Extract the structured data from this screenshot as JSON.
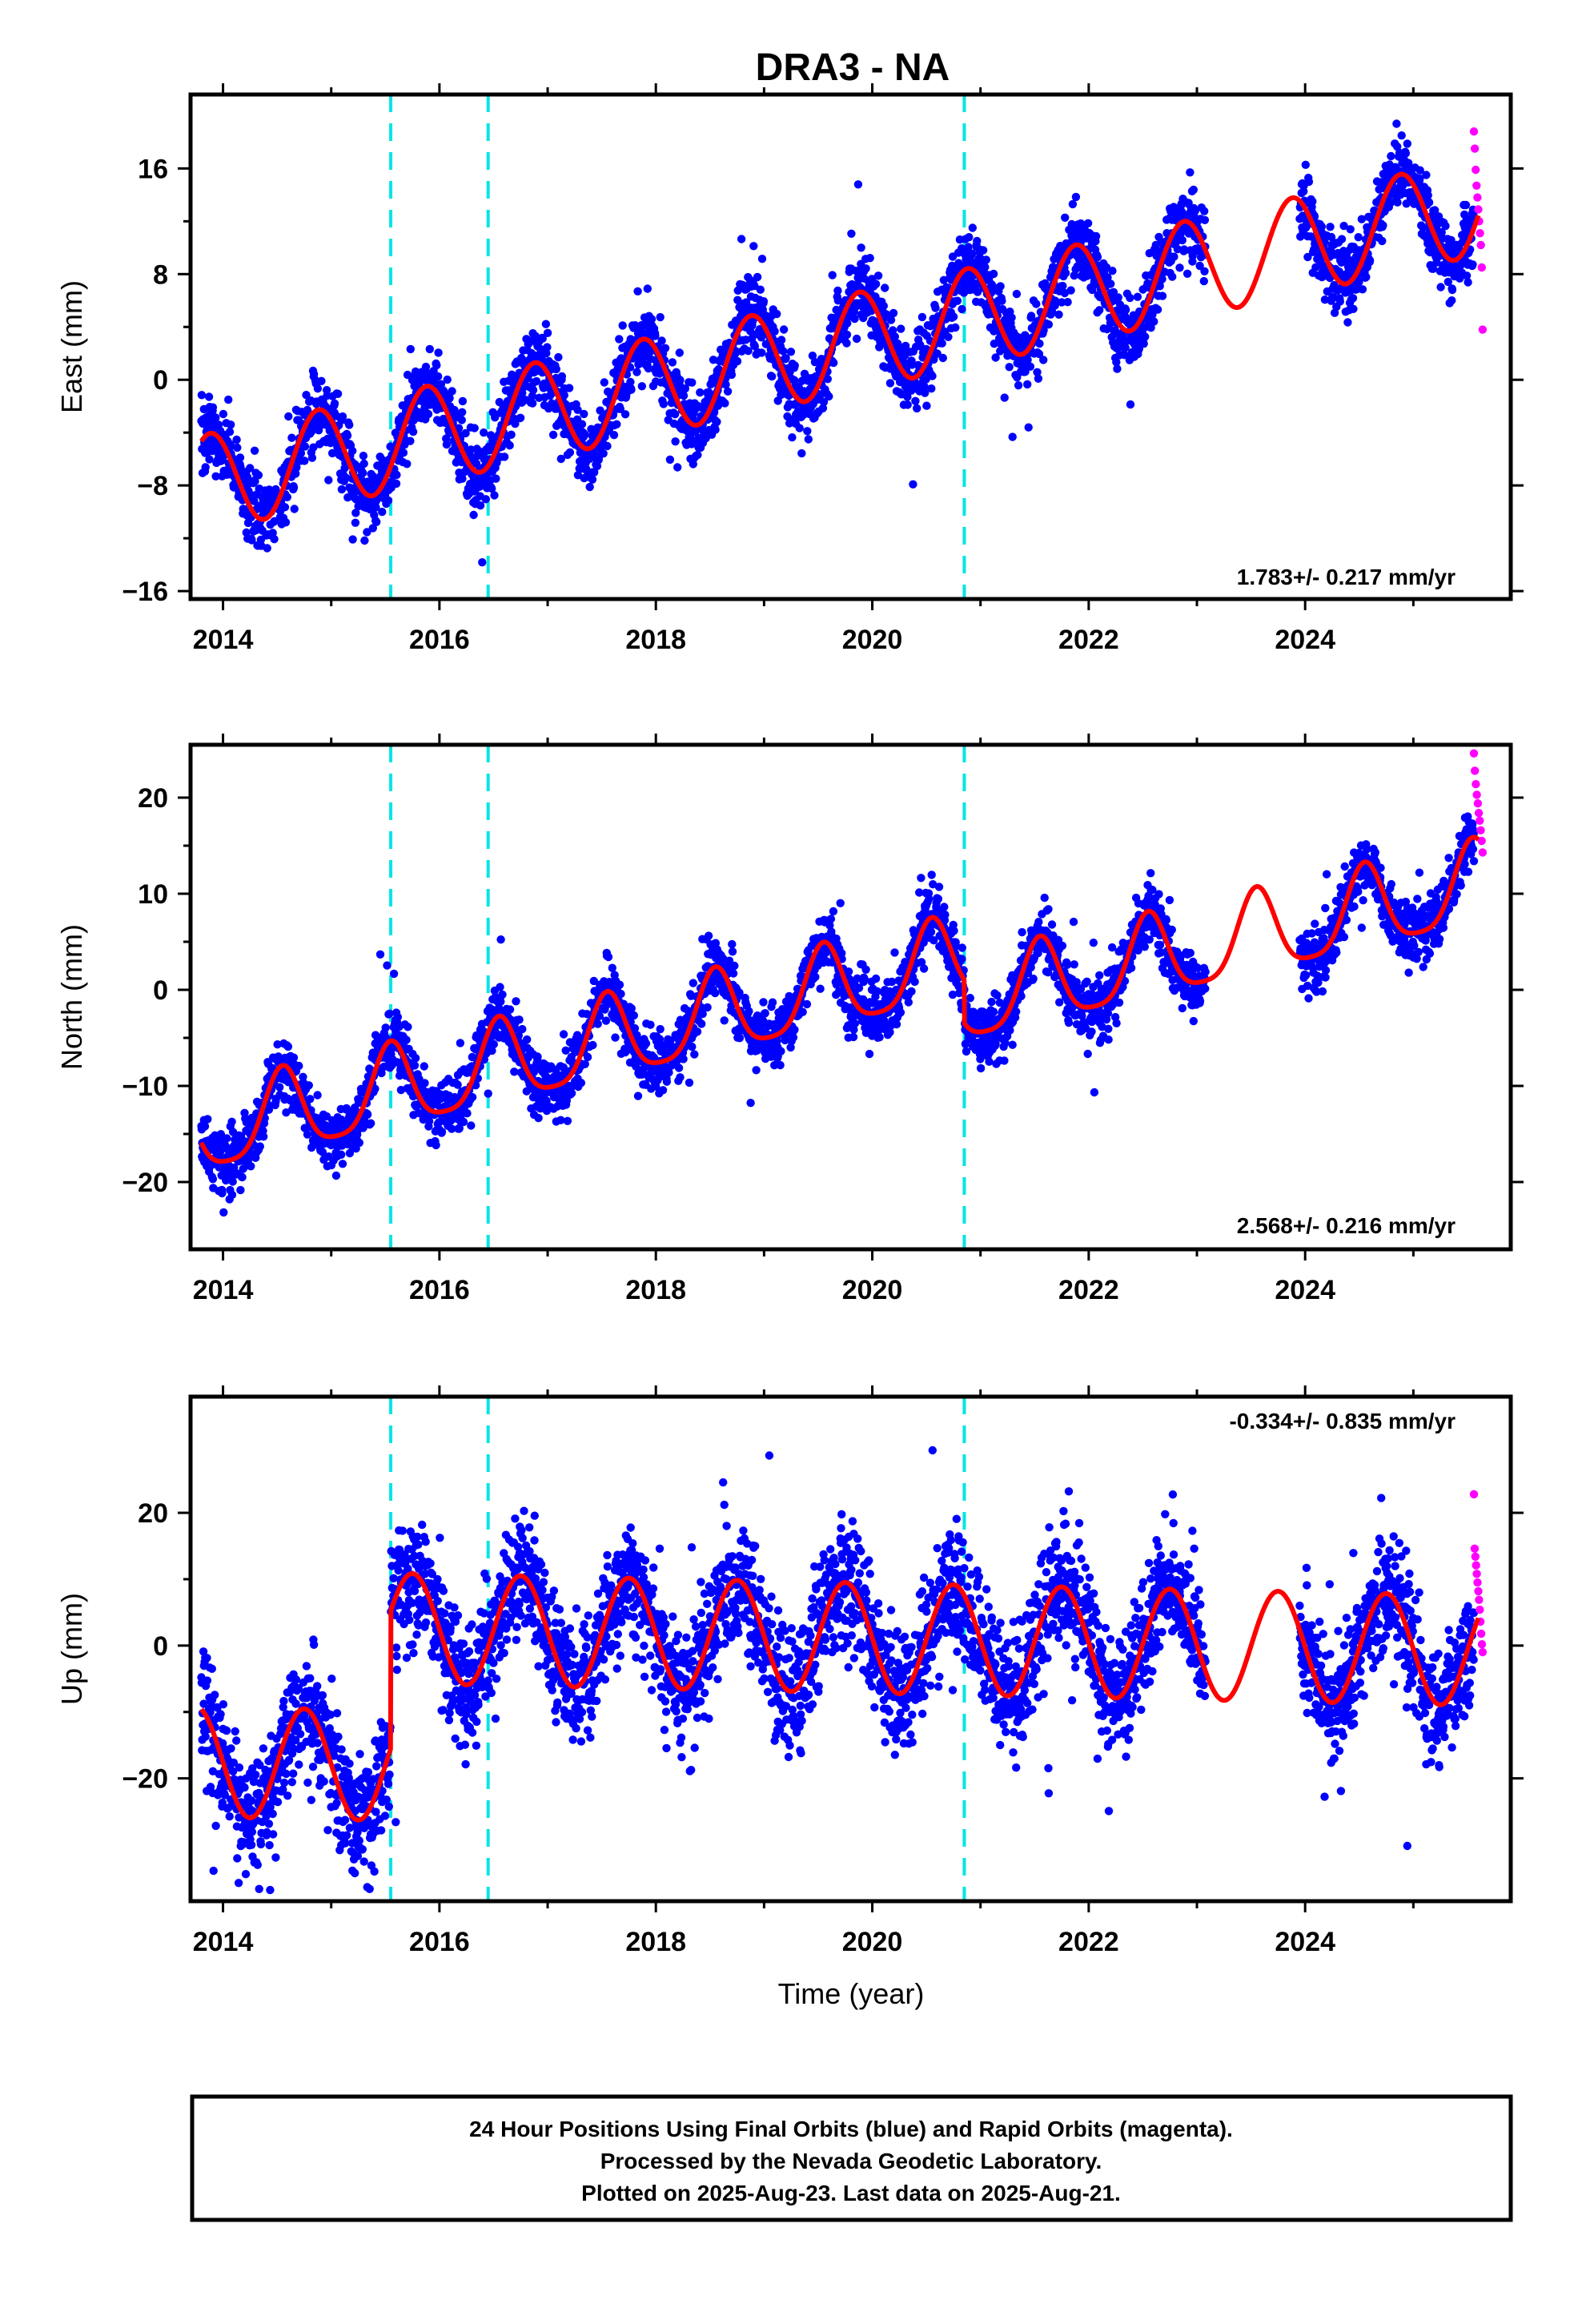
{
  "figure": {
    "title": "DRA3 - NA",
    "xlabel": "Time (year)",
    "colors": {
      "final_orbits": "#0000ff",
      "rapid_orbits": "#ff00ff",
      "model_fit": "#ff0000",
      "offset_lines": "#00e5e5",
      "frame": "#000000"
    }
  },
  "chart_data": [
    {
      "type": "scatter",
      "ylabel": "East (mm)",
      "rate_label": "1.783+/- 0.217 mm/yr",
      "xlim": [
        2013.7,
        2025.9
      ],
      "ylim": [
        -16.6,
        21.6
      ],
      "xticks": [
        2014,
        2016,
        2018,
        2020,
        2022,
        2024
      ],
      "yticks": [
        -16,
        -8,
        0,
        8,
        16
      ],
      "offset_epochs": [
        2015.55,
        2016.45,
        2020.85
      ],
      "fit_model": {
        "start": 2013.8,
        "end": 2025.6,
        "value_at_start": -7.9,
        "rate": 1.783,
        "annual_amplitude": 3.7,
        "annual_peak": 2014.88,
        "semiannual_amplitude": 0,
        "semiannual_peak": 2014.0,
        "offsets": [
          0,
          0,
          0
        ]
      },
      "final_orbits": {
        "start": 2013.8,
        "end": 2023.08,
        "second_start": 2023.95,
        "second_end": 2025.56,
        "scatter": 1.4
      },
      "rapid_orbits": {
        "start": 2025.56,
        "end": 2025.64,
        "values": [
          18.8,
          17.5,
          15.9,
          14.7,
          13.8,
          12.9,
          12.0,
          11.1,
          10.2,
          8.5,
          3.8
        ]
      }
    },
    {
      "type": "scatter",
      "ylabel": "North (mm)",
      "rate_label": "2.568+/- 0.216 mm/yr",
      "xlim": [
        2013.7,
        2025.9
      ],
      "ylim": [
        -27,
        25.5
      ],
      "xticks": [
        2014,
        2016,
        2018,
        2020,
        2022,
        2024
      ],
      "yticks": [
        -20,
        -10,
        0,
        10,
        20
      ],
      "offset_epochs": [
        2015.55,
        2016.45,
        2020.85
      ],
      "fit_model": {
        "start": 2013.8,
        "end": 2025.6,
        "value_at_start": -15.0,
        "rate": 2.568,
        "annual_amplitude": 4.3,
        "annual_peak": 2014.55,
        "semiannual_amplitude": 0.9,
        "semiannual_peak": 2014.55,
        "offsets": [
          0,
          0,
          -4.5
        ]
      },
      "final_orbits": {
        "start": 2013.8,
        "end": 2023.08,
        "second_start": 2023.95,
        "second_end": 2025.56,
        "scatter": 1.6
      },
      "rapid_orbits": {
        "start": 2025.56,
        "end": 2025.64,
        "values": [
          24.6,
          22.8,
          21.4,
          20.3,
          19.4,
          18.4,
          17.6,
          16.6,
          15.5,
          14.3
        ]
      }
    },
    {
      "type": "scatter",
      "ylabel": "Up (mm)",
      "rate_label": "-0.334+/- 0.835 mm/yr",
      "xlim": [
        2013.7,
        2025.9
      ],
      "ylim": [
        -38.5,
        37.5
      ],
      "xticks": [
        2014,
        2016,
        2018,
        2020,
        2022,
        2024
      ],
      "yticks": [
        -20,
        0,
        20
      ],
      "offset_epochs": [
        2015.55,
        2016.45,
        2020.85
      ],
      "fit_model": {
        "start": 2013.8,
        "end": 2025.6,
        "value_at_start": -17.5,
        "rate": -0.334,
        "annual_amplitude": 8.3,
        "annual_peak": 2014.75,
        "semiannual_amplitude": 0,
        "semiannual_peak": 2014.0,
        "offsets": [
          20.7,
          0,
          0
        ]
      },
      "final_orbits": {
        "start": 2013.8,
        "end": 2023.08,
        "second_start": 2023.95,
        "second_end": 2025.56,
        "scatter": 4.6
      },
      "rapid_orbits": {
        "start": 2025.56,
        "end": 2025.64,
        "values": [
          22.8,
          14.6,
          13.4,
          12.1,
          10.8,
          9.5,
          8.2,
          6.9,
          5.4,
          3.6,
          1.8,
          0.2,
          -1.0
        ]
      }
    }
  ],
  "footer": {
    "line1": "24 Hour Positions Using Final Orbits (blue) and Rapid Orbits (magenta).",
    "line2": "Processed by the Nevada Geodetic Laboratory.",
    "line3": "Plotted on 2025-Aug-23. Last data on 2025-Aug-21."
  }
}
